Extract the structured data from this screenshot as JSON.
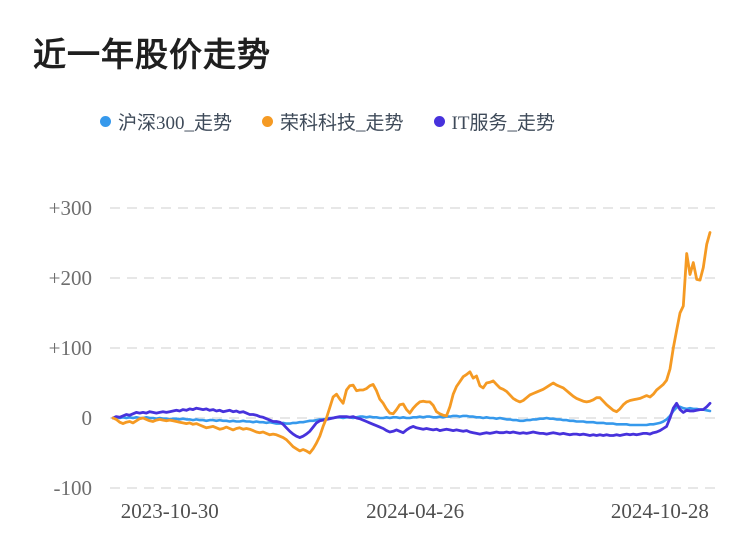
{
  "chart_data": {
    "type": "line",
    "title": "近一年股价走势",
    "legend_position": "top",
    "grid": "horizontal-dashed",
    "background": "#ffffff",
    "ylim": [
      -100,
      300
    ],
    "y_ticks": [
      {
        "value": 300,
        "label": "+300"
      },
      {
        "value": 200,
        "label": "+200"
      },
      {
        "value": 100,
        "label": "+100"
      },
      {
        "value": 0,
        "label": "0"
      },
      {
        "value": -100,
        "label": "-100"
      }
    ],
    "x_ticks": [
      {
        "t": 0.095,
        "label": "2023-10-30"
      },
      {
        "t": 0.506,
        "label": "2024-04-26"
      },
      {
        "t": 0.916,
        "label": "2024-10-28"
      }
    ],
    "colors": {
      "grid_line": "#e7e7e7",
      "y_axis_label": "#6e6e6e",
      "x_axis_label": "#4f4f4f",
      "legend_text": "#3e4a59",
      "title_text": "#1f1f1f"
    },
    "series": [
      {
        "name": "沪深300_走势",
        "color": "#3699EC",
        "stroke_width": 2.6,
        "values": [
          0,
          1,
          0,
          1,
          0,
          1,
          0,
          1,
          0,
          0,
          1,
          0,
          0,
          -1,
          0,
          -1,
          -1,
          -2,
          -1,
          -1,
          -2,
          -1,
          -2,
          -2,
          -3,
          -2,
          -3,
          -3,
          -4,
          -3,
          -3,
          -4,
          -3,
          -4,
          -4,
          -5,
          -4,
          -5,
          -5,
          -4,
          -5,
          -5,
          -6,
          -5,
          -6,
          -6,
          -7,
          -6,
          -7,
          -8,
          -8,
          -7,
          -8,
          -8,
          -7,
          -7,
          -6,
          -6,
          -5,
          -4,
          -4,
          -3,
          -2,
          -2,
          -1,
          0,
          0,
          1,
          1,
          0,
          1,
          1,
          0,
          1,
          2,
          2,
          1,
          2,
          1,
          1,
          0,
          0,
          1,
          0,
          1,
          1,
          0,
          1,
          0,
          0,
          1,
          1,
          2,
          1,
          2,
          2,
          1,
          1,
          2,
          1,
          2,
          2,
          3,
          3,
          2,
          3,
          3,
          2,
          2,
          1,
          1,
          0,
          1,
          0,
          0,
          -1,
          0,
          -1,
          -2,
          -2,
          -3,
          -3,
          -4,
          -4,
          -3,
          -3,
          -2,
          -2,
          -1,
          -1,
          0,
          -1,
          -1,
          -2,
          -2,
          -3,
          -3,
          -4,
          -4,
          -5,
          -5,
          -5,
          -6,
          -6,
          -6,
          -7,
          -7,
          -7,
          -8,
          -8,
          -8,
          -9,
          -9,
          -9,
          -9,
          -10,
          -10,
          -10,
          -10,
          -10,
          -10,
          -9,
          -9,
          -8,
          -7,
          -5,
          -2,
          3,
          10,
          15,
          16,
          14,
          13,
          14,
          13,
          13,
          12,
          12,
          11,
          10
        ]
      },
      {
        "name": "IT服务_走势",
        "color": "#4732DC",
        "stroke_width": 2.8,
        "values": [
          0,
          2,
          1,
          3,
          5,
          4,
          6,
          8,
          7,
          8,
          7,
          9,
          8,
          7,
          8,
          9,
          8,
          9,
          10,
          11,
          10,
          12,
          11,
          13,
          12,
          14,
          13,
          12,
          13,
          11,
          12,
          10,
          11,
          9,
          10,
          11,
          9,
          10,
          8,
          9,
          7,
          5,
          5,
          4,
          2,
          1,
          -1,
          -3,
          -5,
          -5,
          -6,
          -9,
          -14,
          -19,
          -23,
          -26,
          -28,
          -26,
          -23,
          -19,
          -13,
          -7,
          -4,
          -3,
          -2,
          -1,
          0,
          1,
          2,
          2,
          2,
          1,
          2,
          0,
          -1,
          -3,
          -5,
          -7,
          -9,
          -11,
          -13,
          -15,
          -18,
          -20,
          -19,
          -17,
          -19,
          -21,
          -17,
          -14,
          -12,
          -14,
          -15,
          -16,
          -15,
          -16,
          -17,
          -16,
          -18,
          -17,
          -16,
          -17,
          -18,
          -17,
          -18,
          -19,
          -18,
          -20,
          -21,
          -22,
          -23,
          -22,
          -21,
          -22,
          -21,
          -20,
          -21,
          -21,
          -20,
          -21,
          -20,
          -21,
          -22,
          -21,
          -22,
          -21,
          -20,
          -21,
          -22,
          -22,
          -23,
          -22,
          -21,
          -22,
          -23,
          -22,
          -23,
          -24,
          -23,
          -23,
          -24,
          -23,
          -24,
          -25,
          -24,
          -25,
          -24,
          -25,
          -24,
          -25,
          -25,
          -24,
          -25,
          -24,
          -23,
          -24,
          -23,
          -24,
          -23,
          -22,
          -22,
          -23,
          -21,
          -20,
          -18,
          -15,
          -12,
          0,
          14,
          21,
          12,
          8,
          11,
          10,
          10,
          11,
          12,
          12,
          16,
          21
        ]
      },
      {
        "name": "荣科科技_走势",
        "color": "#F59A23",
        "stroke_width": 2.8,
        "values": [
          0,
          -2,
          -6,
          -8,
          -6,
          -5,
          -7,
          -4,
          -1,
          0,
          -2,
          -4,
          -5,
          -3,
          -2,
          -3,
          -4,
          -3,
          -4,
          -5,
          -6,
          -7,
          -8,
          -7,
          -9,
          -8,
          -10,
          -12,
          -14,
          -13,
          -12,
          -14,
          -16,
          -15,
          -13,
          -15,
          -17,
          -15,
          -14,
          -16,
          -15,
          -16,
          -18,
          -20,
          -21,
          -20,
          -22,
          -24,
          -23,
          -24,
          -26,
          -28,
          -31,
          -36,
          -41,
          -44,
          -47,
          -45,
          -47,
          -50,
          -44,
          -36,
          -26,
          -12,
          0,
          15,
          30,
          34,
          27,
          21,
          40,
          46,
          47,
          39,
          40,
          40,
          42,
          46,
          48,
          39,
          27,
          21,
          13,
          7,
          6,
          12,
          19,
          20,
          12,
          7,
          14,
          19,
          23,
          24,
          23,
          23,
          18,
          9,
          6,
          4,
          3,
          16,
          34,
          45,
          52,
          59,
          62,
          66,
          57,
          60,
          46,
          43,
          50,
          51,
          53,
          48,
          43,
          41,
          38,
          33,
          28,
          25,
          23,
          25,
          29,
          33,
          35,
          37,
          39,
          41,
          44,
          47,
          50,
          47,
          45,
          43,
          39,
          35,
          31,
          28,
          26,
          24,
          23,
          24,
          26,
          29,
          29,
          24,
          19,
          15,
          11,
          9,
          13,
          19,
          23,
          25,
          26,
          27,
          28,
          30,
          32,
          30,
          34,
          40,
          44,
          48,
          54,
          70,
          100,
          125,
          150,
          160,
          235,
          205,
          222,
          198,
          197,
          215,
          248,
          265
        ]
      }
    ],
    "legend_order": [
      "沪深300_走势",
      "荣科科技_走势",
      "IT服务_走势"
    ]
  }
}
